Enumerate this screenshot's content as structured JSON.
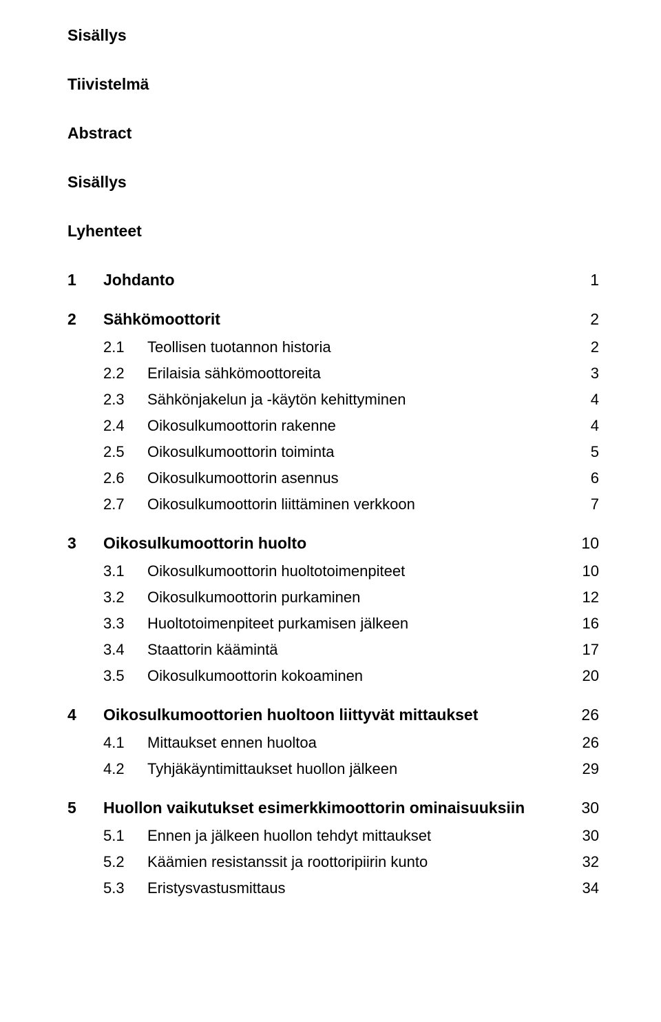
{
  "text_color": "#000000",
  "background_color": "#ffffff",
  "font_family": "Verdana",
  "heading_fontsize_pt": 17,
  "body_fontsize_pt": 16,
  "front_matter": [
    "Sisällys",
    "Tiivistelmä",
    "Abstract",
    "Sisällys",
    "Lyhenteet"
  ],
  "chapters": [
    {
      "num": "1",
      "title": "Johdanto",
      "page": "1",
      "subs": []
    },
    {
      "num": "2",
      "title": "Sähkömoottorit",
      "page": "2",
      "subs": [
        {
          "num": "2.1",
          "title": "Teollisen tuotannon historia",
          "page": "2"
        },
        {
          "num": "2.2",
          "title": "Erilaisia sähkömoottoreita",
          "page": "3"
        },
        {
          "num": "2.3",
          "title": "Sähkönjakelun ja -käytön kehittyminen",
          "page": "4"
        },
        {
          "num": "2.4",
          "title": "Oikosulkumoottorin rakenne",
          "page": "4"
        },
        {
          "num": "2.5",
          "title": "Oikosulkumoottorin toiminta",
          "page": "5"
        },
        {
          "num": "2.6",
          "title": "Oikosulkumoottorin asennus",
          "page": "6"
        },
        {
          "num": "2.7",
          "title": "Oikosulkumoottorin liittäminen verkkoon",
          "page": "7"
        }
      ]
    },
    {
      "num": "3",
      "title": "Oikosulkumoottorin huolto",
      "page": "10",
      "subs": [
        {
          "num": "3.1",
          "title": "Oikosulkumoottorin huoltotoimenpiteet",
          "page": "10"
        },
        {
          "num": "3.2",
          "title": "Oikosulkumoottorin purkaminen",
          "page": "12"
        },
        {
          "num": "3.3",
          "title": "Huoltotoimenpiteet purkamisen jälkeen",
          "page": "16"
        },
        {
          "num": "3.4",
          "title": "Staattorin käämintä",
          "page": "17"
        },
        {
          "num": "3.5",
          "title": "Oikosulkumoottorin kokoaminen",
          "page": "20"
        }
      ]
    },
    {
      "num": "4",
      "title": "Oikosulkumoottorien huoltoon liittyvät mittaukset",
      "page": "26",
      "subs": [
        {
          "num": "4.1",
          "title": "Mittaukset ennen huoltoa",
          "page": "26"
        },
        {
          "num": "4.2",
          "title": "Tyhjäkäyntimittaukset huollon jälkeen",
          "page": "29"
        }
      ]
    },
    {
      "num": "5",
      "title": "Huollon vaikutukset esimerkkimoottorin ominaisuuksiin",
      "page": "30",
      "subs": [
        {
          "num": "5.1",
          "title": "Ennen ja jälkeen huollon tehdyt mittaukset",
          "page": "30"
        },
        {
          "num": "5.2",
          "title": "Käämien resistanssit ja roottoripiirin kunto",
          "page": "32"
        },
        {
          "num": "5.3",
          "title": "Eristysvastusmittaus",
          "page": "34"
        }
      ]
    }
  ]
}
